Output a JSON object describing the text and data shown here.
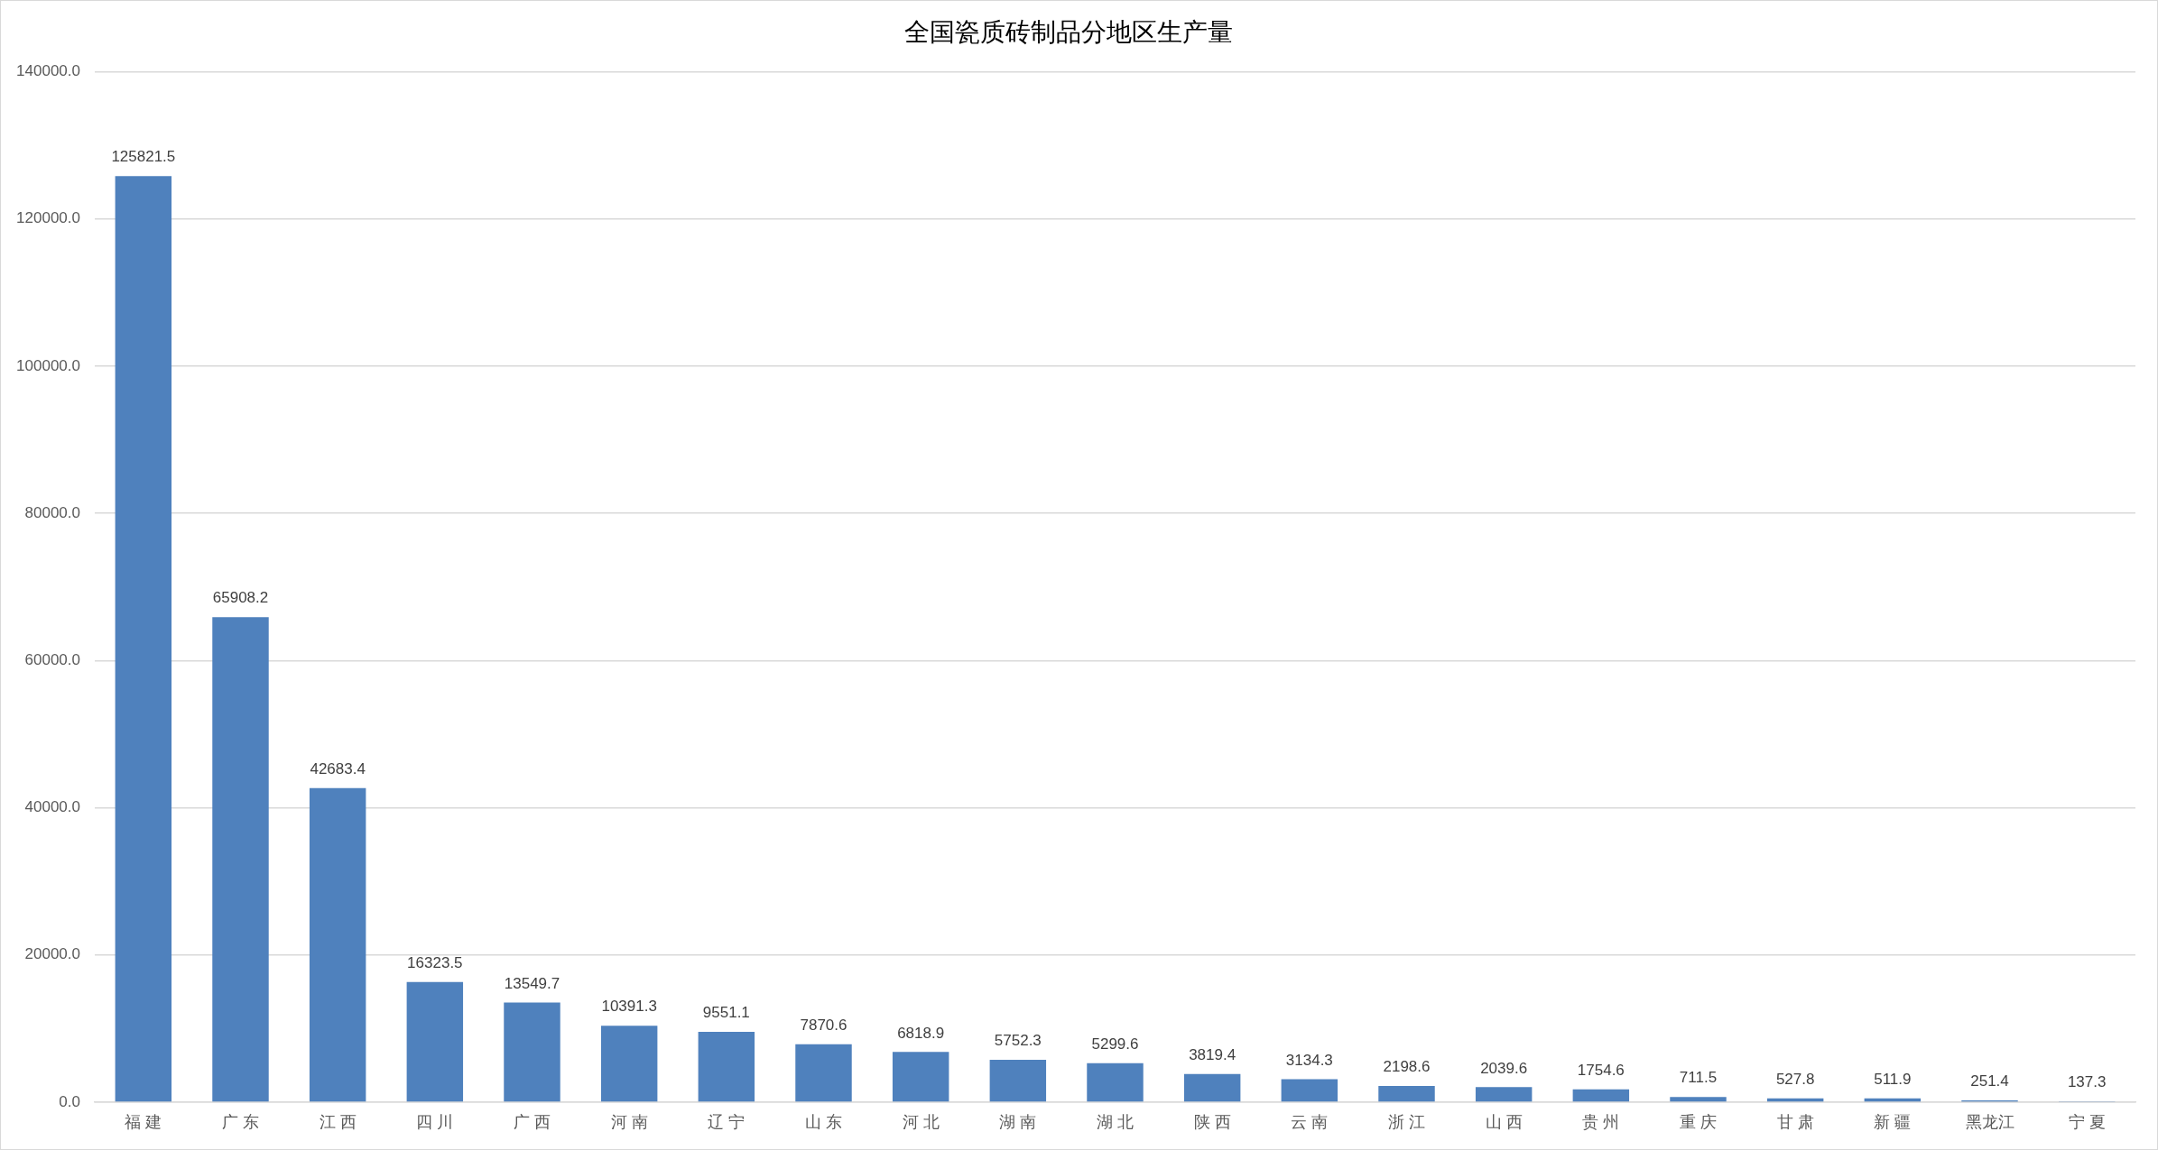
{
  "chart_data": {
    "type": "bar",
    "title": "全国瓷质砖制品分地区生产量",
    "categories": [
      "福 建",
      "广 东",
      "江 西",
      "四 川",
      "广 西",
      "河 南",
      "辽 宁",
      "山 东",
      "河 北",
      "湖 南",
      "湖 北",
      "陕 西",
      "云 南",
      "浙 江",
      "山 西",
      "贵 州",
      "重 庆",
      "甘 肃",
      "新 疆",
      "黑龙江",
      "宁 夏"
    ],
    "values": [
      125821.5,
      65908.2,
      42683.4,
      16323.5,
      13549.7,
      10391.3,
      9551.1,
      7870.6,
      6818.9,
      5752.3,
      5299.6,
      3819.4,
      3134.3,
      2198.6,
      2039.6,
      1754.6,
      711.5,
      527.8,
      511.9,
      251.4,
      137.3
    ],
    "color": "#4f81bd",
    "ylim": [
      0,
      140000
    ],
    "yticks": [
      {
        "value": 0,
        "label": "0.0"
      },
      {
        "value": 20000,
        "label": "20000.0"
      },
      {
        "value": 40000,
        "label": "40000.0"
      },
      {
        "value": 60000,
        "label": "60000.0"
      },
      {
        "value": 80000,
        "label": "80000.0"
      },
      {
        "value": 100000,
        "label": "100000.0"
      },
      {
        "value": 120000,
        "label": "120000.0"
      },
      {
        "value": 140000,
        "label": "140000.0"
      }
    ],
    "grid": "y",
    "data_labels": true
  }
}
